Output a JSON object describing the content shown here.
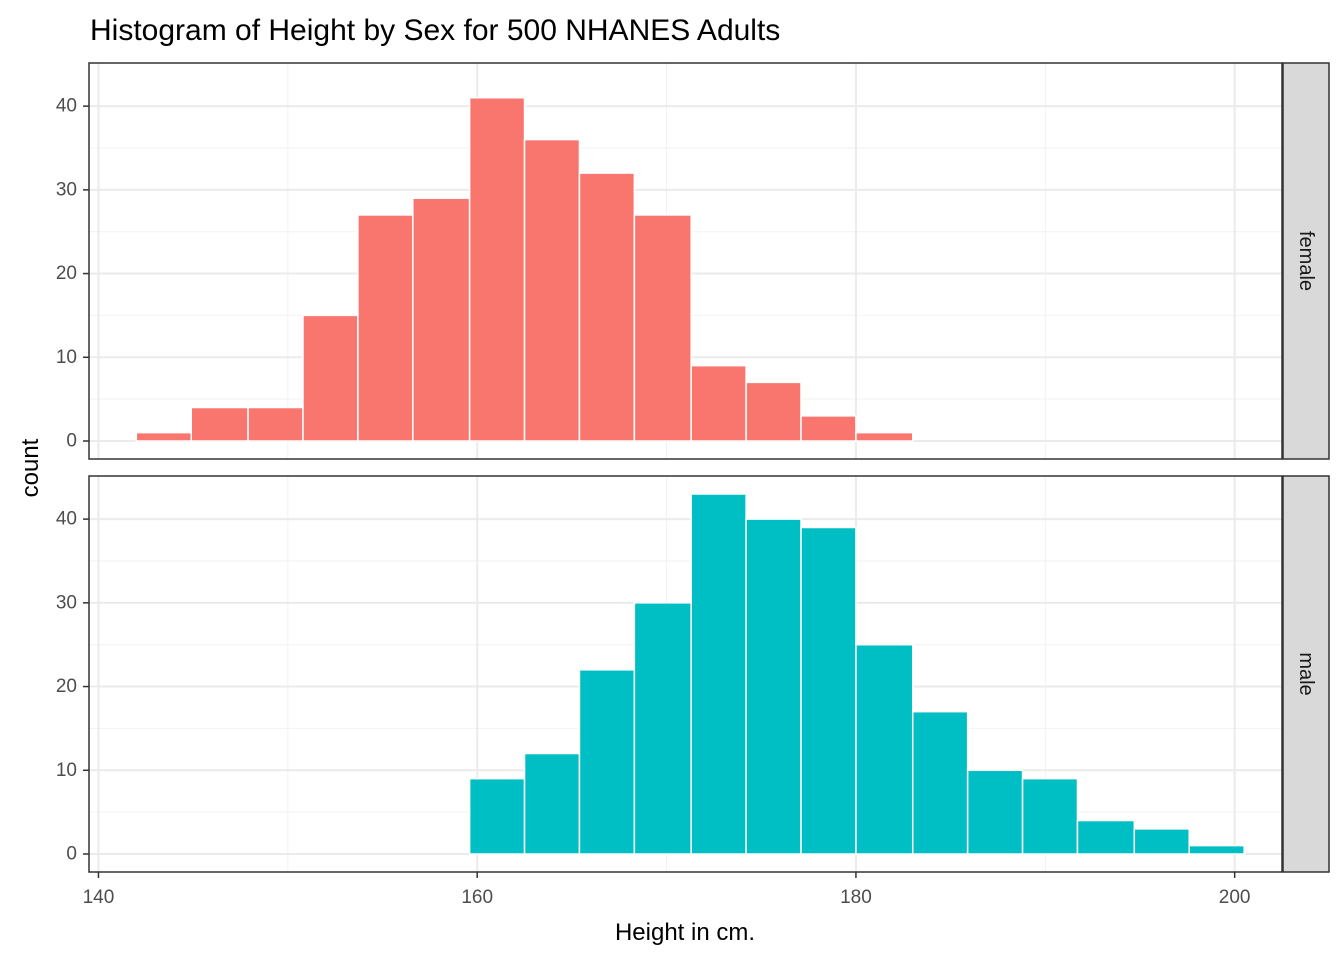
{
  "chart_data": {
    "type": "bar",
    "title": "Histogram of Height by Sex for 500 NHANES Adults",
    "xlabel": "Height in cm.",
    "ylabel": "count",
    "xlim": [
      139.5,
      202.5
    ],
    "ylim": [
      -2.15,
      45.15
    ],
    "x_ticks": [
      140,
      160,
      180,
      200
    ],
    "y_ticks": [
      0,
      10,
      20,
      30,
      40
    ],
    "grid": true,
    "bin_width": 2.93,
    "facets": [
      {
        "name": "female",
        "color": "#F8766D",
        "bins": [
          {
            "start": 142.0,
            "end": 144.9,
            "count": 1
          },
          {
            "start": 144.9,
            "end": 147.9,
            "count": 4
          },
          {
            "start": 147.9,
            "end": 150.8,
            "count": 4
          },
          {
            "start": 150.8,
            "end": 153.7,
            "count": 15
          },
          {
            "start": 153.7,
            "end": 156.6,
            "count": 27
          },
          {
            "start": 156.6,
            "end": 159.6,
            "count": 29
          },
          {
            "start": 159.6,
            "end": 162.5,
            "count": 41
          },
          {
            "start": 162.5,
            "end": 165.4,
            "count": 36
          },
          {
            "start": 165.4,
            "end": 168.3,
            "count": 32
          },
          {
            "start": 168.3,
            "end": 171.3,
            "count": 27
          },
          {
            "start": 171.3,
            "end": 174.2,
            "count": 9
          },
          {
            "start": 174.2,
            "end": 177.1,
            "count": 7
          },
          {
            "start": 177.1,
            "end": 180.0,
            "count": 3
          },
          {
            "start": 180.0,
            "end": 183.0,
            "count": 1
          }
        ]
      },
      {
        "name": "male",
        "color": "#00BFC4",
        "bins": [
          {
            "start": 159.6,
            "end": 162.5,
            "count": 9
          },
          {
            "start": 162.5,
            "end": 165.4,
            "count": 12
          },
          {
            "start": 165.4,
            "end": 168.3,
            "count": 22
          },
          {
            "start": 168.3,
            "end": 171.3,
            "count": 30
          },
          {
            "start": 171.3,
            "end": 174.2,
            "count": 43
          },
          {
            "start": 174.2,
            "end": 177.1,
            "count": 40
          },
          {
            "start": 177.1,
            "end": 180.0,
            "count": 39
          },
          {
            "start": 180.0,
            "end": 183.0,
            "count": 25
          },
          {
            "start": 183.0,
            "end": 185.9,
            "count": 17
          },
          {
            "start": 185.9,
            "end": 188.8,
            "count": 10
          },
          {
            "start": 188.8,
            "end": 191.7,
            "count": 9
          },
          {
            "start": 191.7,
            "end": 194.7,
            "count": 4
          },
          {
            "start": 194.7,
            "end": 197.6,
            "count": 3
          },
          {
            "start": 197.6,
            "end": 200.5,
            "count": 1
          }
        ]
      }
    ]
  }
}
